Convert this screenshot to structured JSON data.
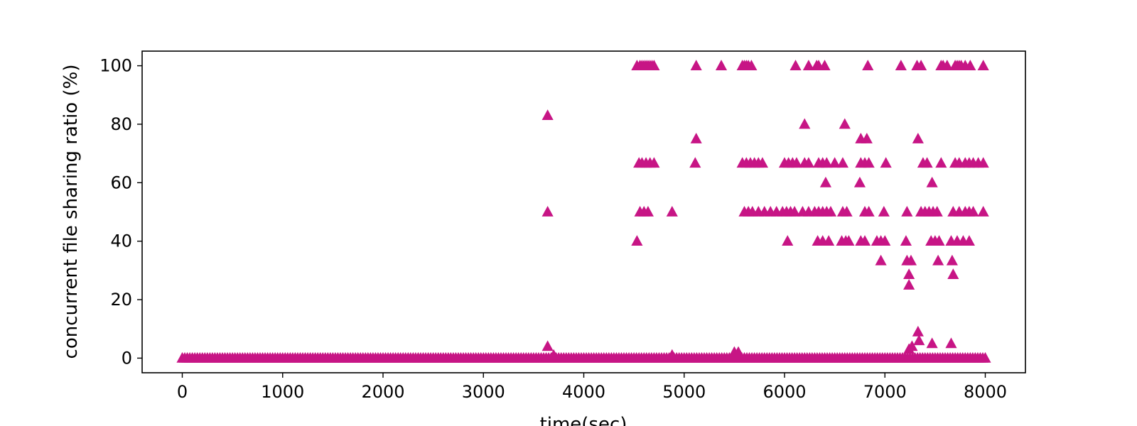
{
  "chart_data": {
    "type": "scatter",
    "title": "",
    "xlabel": "time(sec)",
    "ylabel": "concurrent file sharing ratio (%)",
    "xlim": [
      -400,
      8400
    ],
    "ylim": [
      -5,
      105
    ],
    "x_ticks": [
      0,
      1000,
      2000,
      3000,
      4000,
      5000,
      6000,
      7000,
      8000
    ],
    "x_tick_labels": [
      "0",
      "1000",
      "2000",
      "3000",
      "4000",
      "5000",
      "6000",
      "7000",
      "8000"
    ],
    "y_ticks": [
      0,
      20,
      40,
      60,
      80,
      100
    ],
    "y_tick_labels": [
      "0",
      "20",
      "40",
      "60",
      "80",
      "100"
    ],
    "grid": false,
    "legend": "none",
    "marker": "triangle-up",
    "color": "#c71585",
    "baseline": {
      "y": 0,
      "x_start": 0,
      "x_end": 8000,
      "x_step": 25
    },
    "series": [
      {
        "points": [
          [
            3640,
            83
          ],
          [
            3640,
            50
          ],
          [
            3640,
            4
          ],
          [
            3700,
            1
          ],
          [
            4530,
            100
          ],
          [
            4560,
            100
          ],
          [
            4580,
            100
          ],
          [
            4600,
            100
          ],
          [
            4620,
            100
          ],
          [
            4640,
            100
          ],
          [
            4660,
            100
          ],
          [
            4680,
            100
          ],
          [
            4700,
            100
          ],
          [
            5120,
            100
          ],
          [
            5370,
            100
          ],
          [
            5580,
            100
          ],
          [
            5600,
            100
          ],
          [
            5620,
            100
          ],
          [
            5640,
            100
          ],
          [
            5670,
            100
          ],
          [
            6110,
            100
          ],
          [
            6240,
            100
          ],
          [
            6320,
            100
          ],
          [
            6340,
            100
          ],
          [
            6400,
            100
          ],
          [
            6830,
            100
          ],
          [
            7160,
            100
          ],
          [
            7320,
            100
          ],
          [
            7360,
            100
          ],
          [
            7560,
            100
          ],
          [
            7580,
            100
          ],
          [
            7620,
            100
          ],
          [
            7700,
            100
          ],
          [
            7720,
            100
          ],
          [
            7740,
            100
          ],
          [
            7760,
            100
          ],
          [
            7800,
            100
          ],
          [
            7850,
            100
          ],
          [
            7980,
            100
          ],
          [
            6200,
            80
          ],
          [
            6600,
            80
          ],
          [
            5120,
            75
          ],
          [
            6760,
            75
          ],
          [
            6820,
            75
          ],
          [
            7330,
            75
          ],
          [
            4550,
            66.7
          ],
          [
            4580,
            66.7
          ],
          [
            4620,
            66.7
          ],
          [
            4660,
            66.7
          ],
          [
            4700,
            66.7
          ],
          [
            5110,
            66.7
          ],
          [
            5580,
            66.7
          ],
          [
            5620,
            66.7
          ],
          [
            5660,
            66.7
          ],
          [
            5700,
            66.7
          ],
          [
            5740,
            66.7
          ],
          [
            5780,
            66.7
          ],
          [
            6000,
            66.7
          ],
          [
            6040,
            66.7
          ],
          [
            6080,
            66.7
          ],
          [
            6120,
            66.7
          ],
          [
            6200,
            66.7
          ],
          [
            6240,
            66.7
          ],
          [
            6340,
            66.7
          ],
          [
            6380,
            66.7
          ],
          [
            6420,
            66.7
          ],
          [
            6500,
            66.7
          ],
          [
            6580,
            66.7
          ],
          [
            6760,
            66.7
          ],
          [
            6800,
            66.7
          ],
          [
            6840,
            66.7
          ],
          [
            7010,
            66.7
          ],
          [
            7380,
            66.7
          ],
          [
            7420,
            66.7
          ],
          [
            7560,
            66.7
          ],
          [
            7700,
            66.7
          ],
          [
            7740,
            66.7
          ],
          [
            7800,
            66.7
          ],
          [
            7840,
            66.7
          ],
          [
            7880,
            66.7
          ],
          [
            7930,
            66.7
          ],
          [
            7980,
            66.7
          ],
          [
            6410,
            60
          ],
          [
            6750,
            60
          ],
          [
            7470,
            60
          ],
          [
            4560,
            50
          ],
          [
            4600,
            50
          ],
          [
            4640,
            50
          ],
          [
            4880,
            50
          ],
          [
            5600,
            50
          ],
          [
            5640,
            50
          ],
          [
            5680,
            50
          ],
          [
            5740,
            50
          ],
          [
            5800,
            50
          ],
          [
            5860,
            50
          ],
          [
            5920,
            50
          ],
          [
            5980,
            50
          ],
          [
            6020,
            50
          ],
          [
            6060,
            50
          ],
          [
            6100,
            50
          ],
          [
            6180,
            50
          ],
          [
            6240,
            50
          ],
          [
            6300,
            50
          ],
          [
            6340,
            50
          ],
          [
            6380,
            50
          ],
          [
            6420,
            50
          ],
          [
            6460,
            50
          ],
          [
            6580,
            50
          ],
          [
            6620,
            50
          ],
          [
            6800,
            50
          ],
          [
            6840,
            50
          ],
          [
            6990,
            50
          ],
          [
            7220,
            50
          ],
          [
            7360,
            50
          ],
          [
            7400,
            50
          ],
          [
            7440,
            50
          ],
          [
            7480,
            50
          ],
          [
            7520,
            50
          ],
          [
            7680,
            50
          ],
          [
            7740,
            50
          ],
          [
            7800,
            50
          ],
          [
            7840,
            50
          ],
          [
            7880,
            50
          ],
          [
            7980,
            50
          ],
          [
            4530,
            40
          ],
          [
            6030,
            40
          ],
          [
            6330,
            40
          ],
          [
            6380,
            40
          ],
          [
            6440,
            40
          ],
          [
            6570,
            40
          ],
          [
            6610,
            40
          ],
          [
            6640,
            40
          ],
          [
            6760,
            40
          ],
          [
            6800,
            40
          ],
          [
            6920,
            40
          ],
          [
            6960,
            40
          ],
          [
            7000,
            40
          ],
          [
            7210,
            40
          ],
          [
            7460,
            40
          ],
          [
            7500,
            40
          ],
          [
            7540,
            40
          ],
          [
            7660,
            40
          ],
          [
            7720,
            40
          ],
          [
            7780,
            40
          ],
          [
            7840,
            40
          ],
          [
            6960,
            33.3
          ],
          [
            7220,
            33.3
          ],
          [
            7260,
            33.3
          ],
          [
            7530,
            33.3
          ],
          [
            7670,
            33.3
          ],
          [
            7240,
            28.6
          ],
          [
            7680,
            28.6
          ],
          [
            7240,
            25
          ],
          [
            7330,
            9
          ],
          [
            7340,
            6
          ],
          [
            7240,
            3
          ],
          [
            7270,
            4
          ],
          [
            7470,
            5
          ],
          [
            7660,
            5
          ],
          [
            5500,
            2
          ],
          [
            5540,
            2
          ],
          [
            4880,
            1
          ]
        ]
      }
    ]
  }
}
